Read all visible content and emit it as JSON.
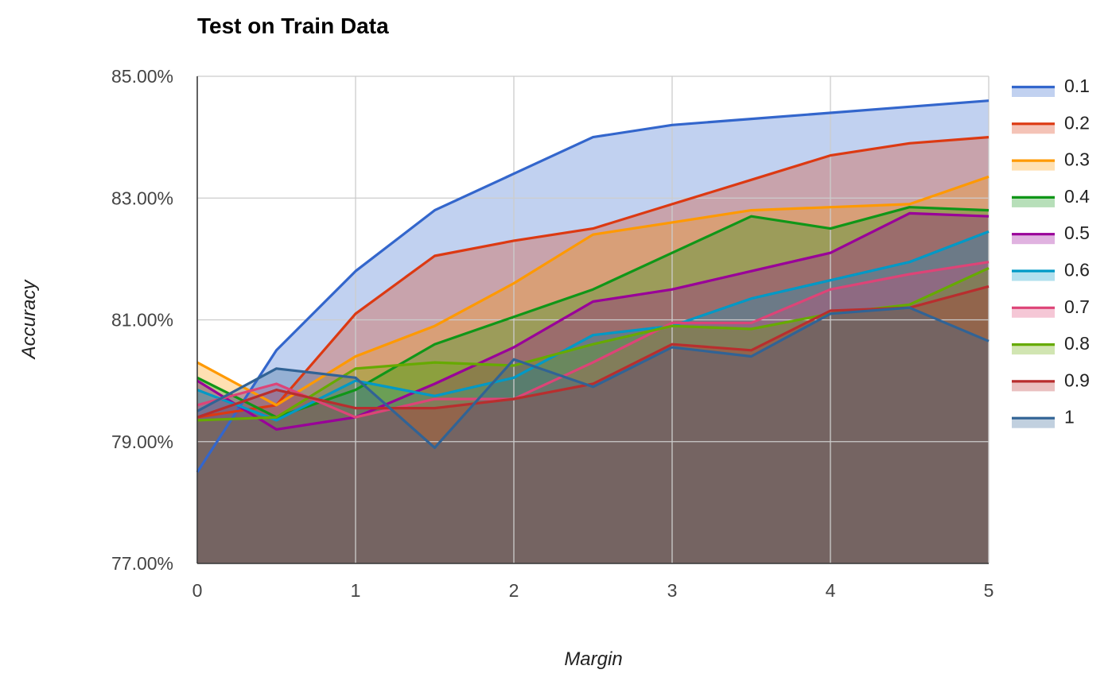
{
  "chart_data": {
    "type": "area",
    "title": "Test on Train Data",
    "xlabel": "Margin",
    "ylabel": "Accuracy",
    "x": [
      0,
      0.5,
      1,
      1.5,
      2,
      2.5,
      3,
      3.5,
      4,
      4.5,
      5
    ],
    "x_ticks": [
      "0",
      "1",
      "2",
      "3",
      "4",
      "5"
    ],
    "x_tick_values": [
      0,
      1,
      2,
      3,
      4,
      5
    ],
    "xlim": [
      0,
      5
    ],
    "ylim": [
      77,
      85
    ],
    "y_ticks": [
      "77.00%",
      "79.00%",
      "81.00%",
      "83.00%",
      "85.00%"
    ],
    "y_tick_values": [
      77,
      79,
      81,
      83,
      85
    ],
    "grid": true,
    "legend_position": "right",
    "series": [
      {
        "name": "0.1",
        "color": "#3366cc",
        "values": [
          78.5,
          80.5,
          81.8,
          82.8,
          83.4,
          84.0,
          84.2,
          84.3,
          84.4,
          84.5,
          84.6
        ]
      },
      {
        "name": "0.2",
        "color": "#dc3912",
        "values": [
          79.4,
          79.6,
          81.1,
          82.05,
          82.3,
          82.5,
          82.9,
          83.3,
          83.7,
          83.9,
          84.0
        ]
      },
      {
        "name": "0.3",
        "color": "#ff9900",
        "values": [
          80.3,
          79.6,
          80.4,
          80.9,
          81.6,
          82.4,
          82.6,
          82.8,
          82.85,
          82.9,
          83.35
        ]
      },
      {
        "name": "0.4",
        "color": "#109618",
        "values": [
          80.05,
          79.4,
          79.85,
          80.6,
          81.05,
          81.5,
          82.1,
          82.7,
          82.5,
          82.85,
          82.8
        ]
      },
      {
        "name": "0.5",
        "color": "#990099",
        "values": [
          80.0,
          79.2,
          79.4,
          79.95,
          80.55,
          81.3,
          81.5,
          81.8,
          82.1,
          82.75,
          82.7
        ]
      },
      {
        "name": "0.6",
        "color": "#0099c6",
        "values": [
          79.85,
          79.35,
          80.0,
          79.75,
          80.05,
          80.75,
          80.9,
          81.35,
          81.65,
          81.95,
          82.45
        ]
      },
      {
        "name": "0.7",
        "color": "#dd4477",
        "values": [
          79.6,
          79.95,
          79.4,
          79.7,
          79.7,
          80.3,
          80.95,
          80.95,
          81.5,
          81.75,
          81.95
        ]
      },
      {
        "name": "0.8",
        "color": "#66aa00",
        "values": [
          79.35,
          79.4,
          80.2,
          80.3,
          80.25,
          80.6,
          80.9,
          80.85,
          81.1,
          81.25,
          81.85
        ]
      },
      {
        "name": "0.9",
        "color": "#b82e2e",
        "values": [
          79.4,
          79.85,
          79.55,
          79.55,
          79.7,
          79.95,
          80.6,
          80.5,
          81.15,
          81.2,
          81.55
        ]
      },
      {
        "name": "1",
        "color": "#316395",
        "values": [
          79.5,
          80.2,
          80.05,
          78.9,
          80.35,
          79.9,
          80.55,
          80.4,
          81.1,
          81.2,
          80.65
        ]
      }
    ]
  }
}
